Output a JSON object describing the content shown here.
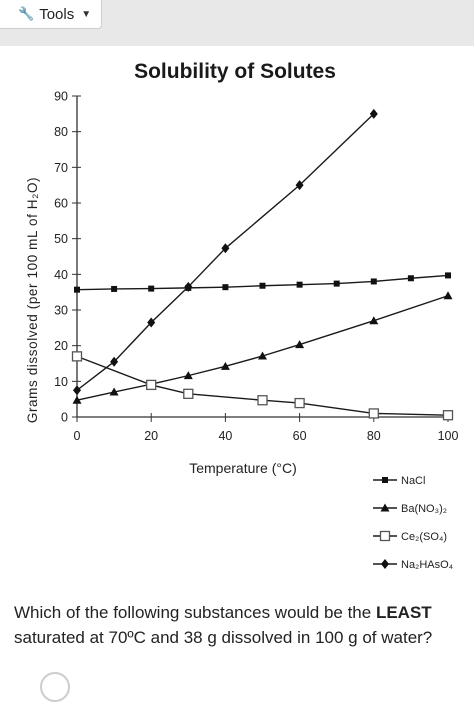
{
  "toolbar": {
    "tools_label": "Tools",
    "tools_icon": "wrench-icon",
    "caret_icon": "caret-down-icon"
  },
  "chart_data": {
    "type": "line",
    "title": "Solubility of Solutes",
    "xlabel": "Temperature (°C)",
    "ylabel": "Grams dissolved (per 100 mL of H₂O)",
    "xlim": [
      0,
      100
    ],
    "ylim": [
      0,
      90
    ],
    "xticks": [
      0,
      20,
      40,
      60,
      80,
      100
    ],
    "yticks": [
      0,
      10,
      20,
      30,
      40,
      50,
      60,
      70,
      80,
      90
    ],
    "grid": false,
    "legend_position": "bottom-right",
    "series": [
      {
        "name": "NaCl",
        "marker": "square-filled",
        "x": [
          0,
          10,
          20,
          30,
          40,
          50,
          60,
          70,
          80,
          90,
          100
        ],
        "y": [
          35.7,
          35.9,
          36.0,
          36.2,
          36.4,
          36.8,
          37.1,
          37.4,
          38.0,
          38.9,
          39.7
        ]
      },
      {
        "name": "Ba(NO₃)₂",
        "marker": "triangle-filled",
        "x": [
          0,
          10,
          20,
          30,
          40,
          50,
          60,
          80,
          100
        ],
        "y": [
          4.7,
          7.0,
          9.2,
          11.6,
          14.2,
          17.1,
          20.3,
          27.0,
          34.0
        ]
      },
      {
        "name": "Ce₂(SO₄)",
        "marker": "square-open",
        "x": [
          0,
          20,
          30,
          50,
          60,
          80,
          100
        ],
        "y": [
          17.0,
          9.0,
          6.5,
          4.7,
          3.9,
          1.0,
          0.5
        ]
      },
      {
        "name": "Na₂HAsO₄",
        "marker": "diamond-filled",
        "x": [
          0,
          10,
          20,
          30,
          40,
          60,
          80
        ],
        "y": [
          7.5,
          15.5,
          26.5,
          36.5,
          47.3,
          65.0,
          85.0
        ]
      }
    ]
  },
  "question": {
    "prefix": "Which of the following substances would be the ",
    "emphasis": "LEAST",
    "suffix": " saturated at 70ºC and 38 g dissolved in 100 g of water?"
  }
}
